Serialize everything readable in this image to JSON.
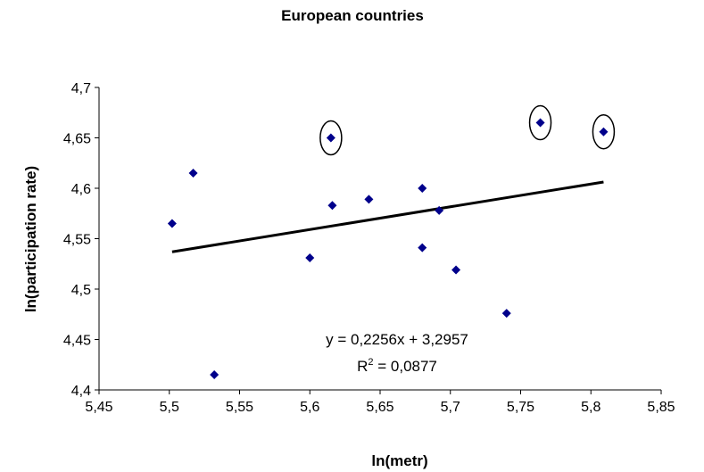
{
  "chart_data": {
    "type": "scatter",
    "title": "European countries",
    "xlabel": "ln(metr)",
    "ylabel": "ln(participation rate)",
    "xlim": [
      5.45,
      5.85
    ],
    "ylim": [
      4.4,
      4.7
    ],
    "x_ticks": [
      "5,45",
      "5,5",
      "5,55",
      "5,6",
      "5,65",
      "5,7",
      "5,75",
      "5,8",
      "5,85"
    ],
    "y_ticks": [
      "4,4",
      "4,45",
      "4,5",
      "4,55",
      "4,6",
      "4,65",
      "4,7"
    ],
    "marker_color": "#00008B",
    "series": [
      {
        "points": [
          {
            "x": 5.502,
            "y": 4.565,
            "circled": false
          },
          {
            "x": 5.517,
            "y": 4.615,
            "circled": false
          },
          {
            "x": 5.532,
            "y": 4.415,
            "circled": false
          },
          {
            "x": 5.6,
            "y": 4.531,
            "circled": false
          },
          {
            "x": 5.615,
            "y": 4.65,
            "circled": true
          },
          {
            "x": 5.616,
            "y": 4.583,
            "circled": false
          },
          {
            "x": 5.642,
            "y": 4.589,
            "circled": false
          },
          {
            "x": 5.68,
            "y": 4.6,
            "circled": false
          },
          {
            "x": 5.68,
            "y": 4.541,
            "circled": false
          },
          {
            "x": 5.692,
            "y": 4.578,
            "circled": false
          },
          {
            "x": 5.704,
            "y": 4.519,
            "circled": false
          },
          {
            "x": 5.74,
            "y": 4.476,
            "circled": false
          },
          {
            "x": 5.764,
            "y": 4.665,
            "circled": true
          },
          {
            "x": 5.809,
            "y": 4.656,
            "circled": true
          }
        ]
      }
    ],
    "trendline": {
      "slope": 0.2256,
      "intercept": 3.2957,
      "x_range": [
        5.502,
        5.809
      ],
      "equation_text": "y = 0,2256x + 3,2957",
      "r2_prefix": "R",
      "r2_sup": "2",
      "r2_value": " = 0,0877"
    },
    "grid": false,
    "legend": "none"
  }
}
